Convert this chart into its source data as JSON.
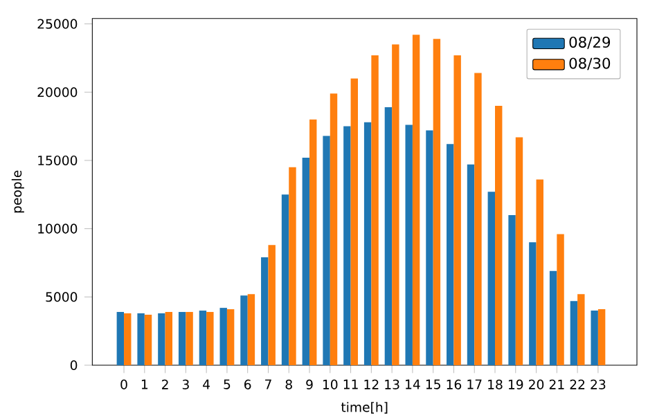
{
  "chart_data": {
    "type": "bar",
    "xlabel": "time[h]",
    "ylabel": "people",
    "categories": [
      "0",
      "1",
      "2",
      "3",
      "4",
      "5",
      "6",
      "7",
      "8",
      "9",
      "10",
      "11",
      "12",
      "13",
      "14",
      "15",
      "16",
      "17",
      "18",
      "19",
      "20",
      "21",
      "22",
      "23"
    ],
    "series": [
      {
        "name": "08/29",
        "color": "#1f77b4",
        "values": [
          3900,
          3800,
          3800,
          3900,
          4000,
          4200,
          5100,
          7900,
          12500,
          15200,
          16800,
          17500,
          17800,
          18900,
          17600,
          17200,
          16200,
          14700,
          12700,
          11000,
          9000,
          6900,
          4700,
          4000
        ]
      },
      {
        "name": "08/30",
        "color": "#ff7f0e",
        "values": [
          3800,
          3700,
          3900,
          3900,
          3900,
          4100,
          5200,
          8800,
          14500,
          18000,
          19900,
          21000,
          22700,
          23500,
          24200,
          23900,
          22700,
          21400,
          19000,
          16700,
          13600,
          9600,
          5200,
          4100
        ]
      }
    ],
    "ylim": [
      0,
      25400
    ],
    "yticks": [
      0,
      5000,
      10000,
      15000,
      20000,
      25000
    ],
    "legend": "top right",
    "grid": false
  }
}
